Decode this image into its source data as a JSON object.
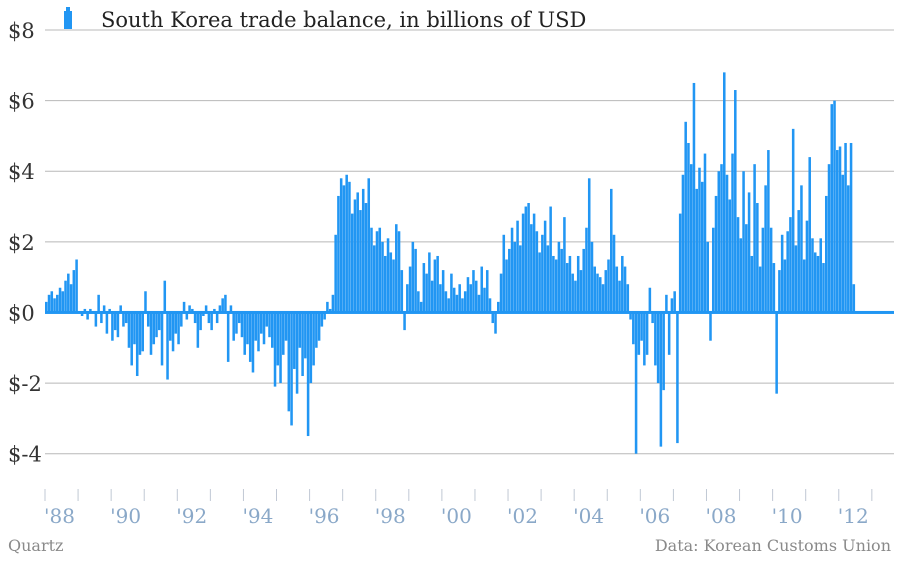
{
  "chart_data": {
    "type": "bar",
    "title": "",
    "legend": "South Korea trade balance, in billions of USD",
    "legend_position": "top-left",
    "ylim": [
      -5,
      8
    ],
    "yticks": [
      -4,
      -2,
      0,
      2,
      4,
      6,
      8
    ],
    "ytick_labels": [
      "$-4",
      "$-2",
      "$0",
      "$2",
      "$4",
      "$6",
      "$8"
    ],
    "xlim": [
      1988.0,
      2013.67
    ],
    "xticks": [
      1988,
      1990,
      1992,
      1994,
      1996,
      1998,
      2000,
      2002,
      2004,
      2006,
      2008,
      2010,
      2012
    ],
    "xtick_labels": [
      "'88",
      "'90",
      "'92",
      "'94",
      "'96",
      "'98",
      "'00",
      "'02",
      "'04",
      "'06",
      "'08",
      "'10",
      "'12"
    ],
    "grid": true,
    "color": "#2196f3",
    "start": "1988-01",
    "frequency": "monthly",
    "values": [
      0.3,
      0.5,
      0.6,
      0.4,
      0.5,
      0.7,
      0.6,
      0.9,
      1.1,
      0.8,
      1.2,
      1.5,
      0.0,
      -0.1,
      0.1,
      -0.2,
      0.1,
      0.0,
      -0.4,
      0.5,
      -0.3,
      0.2,
      -0.6,
      0.1,
      -0.8,
      -0.5,
      -0.7,
      0.2,
      -0.4,
      -0.3,
      -1.0,
      -1.5,
      -0.9,
      -1.8,
      -1.2,
      -1.1,
      0.6,
      -0.4,
      -1.2,
      -0.9,
      -0.7,
      -0.5,
      -1.5,
      0.9,
      -1.9,
      -0.8,
      -1.1,
      -0.6,
      -0.9,
      -0.4,
      0.3,
      -0.2,
      0.2,
      0.1,
      -0.3,
      -1.0,
      -0.5,
      -0.1,
      0.2,
      -0.3,
      -0.5,
      0.1,
      -0.3,
      0.2,
      0.4,
      0.5,
      -1.4,
      0.2,
      -0.8,
      -0.6,
      -0.3,
      -0.7,
      -1.2,
      -0.9,
      -1.4,
      -1.7,
      -0.8,
      -1.1,
      -0.6,
      -0.9,
      -0.4,
      -0.7,
      -1.0,
      -2.1,
      -1.5,
      -2.0,
      -1.2,
      -0.8,
      -2.8,
      -3.2,
      -1.6,
      -2.3,
      -1.0,
      -1.8,
      -1.3,
      -3.5,
      -2.0,
      -1.5,
      -1.0,
      -0.8,
      -0.4,
      -0.2,
      0.3,
      0.1,
      0.5,
      2.2,
      3.3,
      3.8,
      3.6,
      3.9,
      3.7,
      2.8,
      3.2,
      3.4,
      2.9,
      3.5,
      3.1,
      3.8,
      2.4,
      1.9,
      2.3,
      2.4,
      2.0,
      1.6,
      2.1,
      1.7,
      1.5,
      2.5,
      2.3,
      1.2,
      -0.5,
      0.8,
      1.3,
      2.0,
      1.8,
      0.6,
      0.3,
      1.4,
      1.1,
      1.7,
      0.9,
      1.5,
      1.6,
      0.8,
      1.2,
      0.6,
      0.4,
      1.1,
      0.7,
      0.5,
      0.8,
      0.4,
      0.6,
      1.0,
      0.8,
      1.2,
      0.9,
      0.5,
      1.3,
      0.7,
      1.2,
      0.4,
      -0.3,
      -0.6,
      0.3,
      1.1,
      2.2,
      1.5,
      1.8,
      2.4,
      2.0,
      2.6,
      1.9,
      2.8,
      3.0,
      3.1,
      2.5,
      2.8,
      2.3,
      1.7,
      2.2,
      2.6,
      1.9,
      3.0,
      1.6,
      1.5,
      2.0,
      1.8,
      2.7,
      1.4,
      1.6,
      1.1,
      0.9,
      1.6,
      1.2,
      1.8,
      2.4,
      3.8,
      2.0,
      1.3,
      1.1,
      1.0,
      0.8,
      1.2,
      1.5,
      3.5,
      2.2,
      1.3,
      0.9,
      1.6,
      1.3,
      0.8,
      -0.2,
      -0.9,
      -4.0,
      -1.2,
      -0.8,
      -1.5,
      -1.2,
      0.7,
      -0.3,
      -1.5,
      -2.0,
      -3.8,
      -2.2,
      0.5,
      -1.2,
      0.4,
      0.6,
      -3.7,
      2.8,
      3.9,
      5.4,
      4.8,
      4.2,
      6.5,
      3.5,
      4.1,
      3.7,
      4.5,
      2.0,
      -0.8,
      2.4,
      3.3,
      4.0,
      4.2,
      6.8,
      3.9,
      3.2,
      4.5,
      6.3,
      2.7,
      2.1,
      4.0,
      2.5,
      3.4,
      1.6,
      4.2,
      3.1,
      1.3,
      2.4,
      3.6,
      4.6,
      2.4,
      1.4,
      -2.3,
      1.2,
      2.2,
      1.5,
      2.3,
      2.7,
      5.2,
      1.9,
      2.9,
      3.6,
      1.5,
      2.6,
      4.4,
      2.1,
      1.7,
      1.6,
      2.1,
      1.4,
      3.3,
      4.2,
      5.9,
      6.0,
      4.6,
      4.7,
      3.9,
      4.8,
      3.6,
      4.8,
      0.8
    ]
  },
  "footer": {
    "credit": "Quartz",
    "source": "Data: Korean Customs Union"
  }
}
